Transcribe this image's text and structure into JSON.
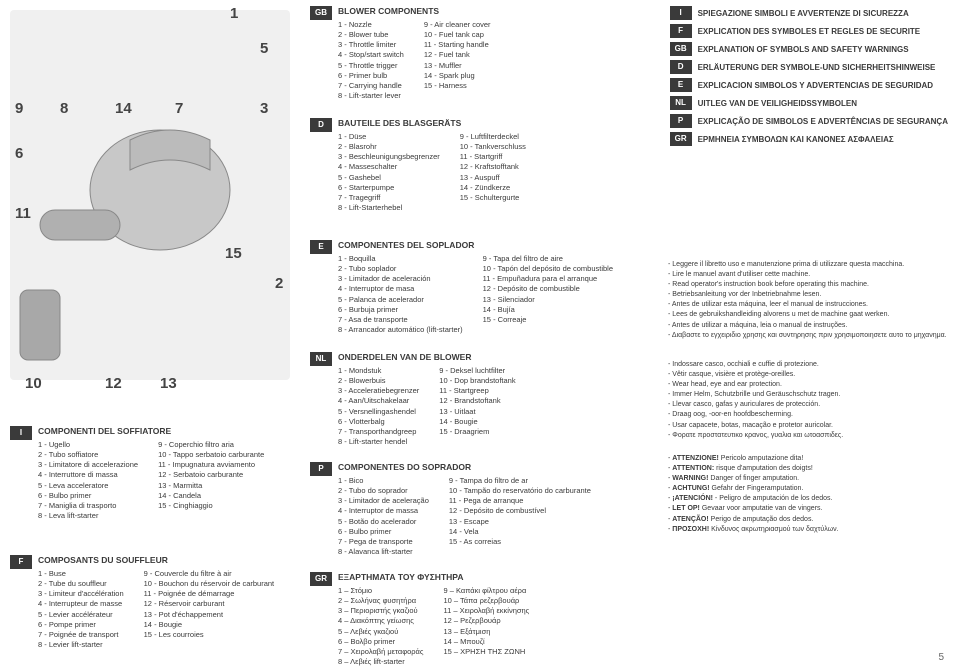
{
  "callouts": {
    "n1": "1",
    "n2": "2",
    "n3": "3",
    "n5": "5",
    "n6": "6",
    "n7": "7",
    "n8": "8",
    "n9": "9",
    "n10": "10",
    "n11": "11",
    "n12": "12",
    "n13": "13",
    "n14": "14",
    "n15": "15"
  },
  "page_number": "5",
  "headers": [
    {
      "code": "I",
      "text": "SPIEGAZIONE SIMBOLI E AVVERTENZE DI SICUREZZA"
    },
    {
      "code": "F",
      "text": "EXPLICATION DES SYMBOLES ET REGLES DE SECURITE"
    },
    {
      "code": "GB",
      "text": "EXPLANATION OF SYMBOLS AND SAFETY WARNINGS"
    },
    {
      "code": "D",
      "text": "ERLÄUTERUNG DER SYMBOLE-UND SICHERHEITSHINWEISE"
    },
    {
      "code": "E",
      "text": "EXPLICACION SIMBOLOS Y ADVERTENCIAS DE SEGURIDAD"
    },
    {
      "code": "NL",
      "text": "UITLEG VAN DE VEILIGHEIDSSYMBOLEN"
    },
    {
      "code": "P",
      "text": "EXPLICAÇÃO DE SIMBOLOS E ADVERTÊNCIAS DE SEGURANÇA"
    },
    {
      "code": "GR",
      "text": "EPMHNEIA ΣΥΜΒΟΛΩΝ ΚΑΙ ΚΑΝΟΝΕΣ ΑΣΦΑΛΕΙΑΣ"
    }
  ],
  "sections": {
    "gb": {
      "code": "GB",
      "title": "BLOWER COMPONENTS",
      "left": [
        "1 - Nozzle",
        "2 - Blower tube",
        "3 - Throttle limiter",
        "4 - Stop/start switch",
        "5 - Throttle trigger",
        "6 - Primer bulb",
        "7 - Carrying handle",
        "8 - Lift-starter lever"
      ],
      "right": [
        "9 - Air cleaner cover",
        "10 - Fuel tank cap",
        "11 - Starting handle",
        "12 - Fuel tank",
        "13 - Muffler",
        "14 - Spark plug",
        "15 - Harness"
      ]
    },
    "d": {
      "code": "D",
      "title": "BAUTEILE DES BLASGERÄTS",
      "left": [
        "1 - Düse",
        "2 - Blasrohr",
        "3 - Beschleunigungsbegrenzer",
        "4 - Masseschalter",
        "5 - Gashebel",
        "6 - Starterpumpe",
        "7 - Tragegriff",
        "8 - Lift-Starterhebel"
      ],
      "right": [
        "9 - Luftfilterdeckel",
        "10 - Tankverschluss",
        "11 - Startgriff",
        "12 - Kraftstofftank",
        "13 - Auspuff",
        "14 - Zündkerze",
        "15 - Schultergurte"
      ]
    },
    "e": {
      "code": "E",
      "title": "COMPONENTES DEL SOPLADOR",
      "left": [
        "1 - Boquilla",
        "2 - Tubo soplador",
        "3 - Limitador de aceleración",
        "4 - Interruptor de masa",
        "5 - Palanca de acelerador",
        "6 - Burbuja primer",
        "7 - Asa de transporte",
        "8 - Arrancador automático (lift-starter)"
      ],
      "right": [
        "9 - Tapa del filtro de aire",
        "10 - Tapón del depósito de combustible",
        "11 - Empuñadura para el arranque",
        "12 - Depósito de combustible",
        "13 - Silenciador",
        "14 - Bujía",
        "15 - Correaje"
      ]
    },
    "nl": {
      "code": "NL",
      "title": "ONDERDELEN VAN DE BLOWER",
      "left": [
        "1 - Mondstuk",
        "2 - Blowerbuis",
        "3 - Acceleratiebegrenzer",
        "4 - Aan/Uitschakelaar",
        "5 - Versnellingashendel",
        "6 - Vlotterbalg",
        "7 - Transporthandgreep",
        "8 - Lift-starter hendel"
      ],
      "right": [
        "9 - Deksel luchtfilter",
        "10 - Dop brandstoftank",
        "11 - Startgreep",
        "12 - Brandstoftank",
        "13 - Uitlaat",
        "14 - Bougie",
        "15 - Draagriem"
      ]
    },
    "p": {
      "code": "P",
      "title": "COMPONENTES DO SOPRADOR",
      "left": [
        "1 - Bico",
        "2 - Tubo do soprador",
        "3 - Limitador de aceleração",
        "4 - Interruptor de massa",
        "5 - Botão do acelerador",
        "6 - Bulbo primer",
        "7 - Pega de transporte",
        "8 - Alavanca lift-starter"
      ],
      "right": [
        "9 - Tampa do filtro de ar",
        "10 - Tampão do reservatório do carburante",
        "11 - Pega de arranque",
        "12 - Depósito de combustível",
        "13 - Escape",
        "14 - Vela",
        "15 - As correias"
      ]
    },
    "gr": {
      "code": "GR",
      "title": "ΕΞΑΡΤΗΜΑΤΑ ΤΟΥ ΦΥΣΗΤΗΡΑ",
      "left": [
        "1 – Στόμιο",
        "2 – Σωλήνας φυσητήρα",
        "3 – Περιοριστής γκαζιού",
        "4 – Διακόπτης γείωσης",
        "5 – Λεβιές γκαζιού",
        "6 – Βολβο primer",
        "7 – Χειρολαβή μεταφοράς",
        "8 – Λεβιές lift-starter"
      ],
      "right": [
        "9 – Καπάκι φίλτρου αέρα",
        "10 – Τάπα ρεζερβουάρ",
        "11 – Χειρολαβή εκκίνησης",
        "12 – Ρεζερβουάρ",
        "13 – Εξάτμιση",
        "14 – Μπουζί",
        "15 – ΧΡΗΣΗ ΤΗΣ ΖΩΝΗ"
      ]
    },
    "i": {
      "code": "I",
      "title": "COMPONENTI DEL SOFFIATORE",
      "left": [
        "1 - Ugello",
        "2 - Tubo soffiatore",
        "3 - Limitatore di accelerazione",
        "4 - Interruttore di massa",
        "5 - Leva acceleratore",
        "6 - Bulbo primer",
        "7 - Maniglia di trasporto",
        "8 - Leva lift-starter"
      ],
      "right": [
        "9 - Coperchio filtro aria",
        "10 - Tappo serbatoio carburante",
        "11 - Impugnatura avviamento",
        "12 - Serbatoio carburante",
        "13 - Marmitta",
        "14 - Candela",
        "15 - Cinghiaggio"
      ]
    },
    "f": {
      "code": "F",
      "title": "COMPOSANTS DU SOUFFLEUR",
      "left": [
        "1 - Buse",
        "2 - Tube du souffleur",
        "3 - Limiteur d'accélération",
        "4 - Interrupteur de masse",
        "5 - Levier accélérateur",
        "6 - Pompe primer",
        "7 - Poignée de transport",
        "8 - Levier lift-starter"
      ],
      "right": [
        "9 - Couvercle du filtre à air",
        "10 - Bouchon du réservoir de carburant",
        "11 - Poignée de démarrage",
        "12 - Réservoir carburant",
        "13 - Pot d'échappement",
        "14 - Bougie",
        "15 - Les courroies"
      ]
    }
  },
  "notes1": [
    "Leggere il libretto uso e manutenzione prima di utilizzare questa macchina.",
    "Lire le manuel avant d'utiliser cette machine.",
    "Read operator's instruction book before operating this machine.",
    "Betriebsanleitung vor der Inbetriebnahme lesen.",
    "Antes de utilizar esta máquina, leer el manual de instrucciones.",
    "Lees de gebruikshandleiding alvorens u met de machine gaat werken.",
    "Antes de utilizar a máquina, leia o manual de instruções.",
    "Διαβαστε το εγχειριδιο χρησης και συντηρησης πριν χρησιμοποιησετε αυτο το μηχανημα."
  ],
  "notes2": [
    "Indossare casco, occhiali e cuffie di protezione.",
    "Vêtir casque, visière et protège-oreilles.",
    "Wear head, eye and ear protection.",
    "Immer Helm, Schutzbrille und Geräuschschutz tragen.",
    "Llevar casco, gafas y auriculares de protección.",
    "Draag oog, -oor-en hoofdbescherming.",
    "Usar capacete, botas, macação e protetor auricolar.",
    "Φορατε προστατευτικο κρανος, γυαλια και ωτοασπιδες."
  ],
  "warnings": [
    {
      "label": "ATTENZIONE!",
      "text": " Pericolo amputazione dita!"
    },
    {
      "label": "ATTENTION:",
      "text": " risque d'amputation des doigts!"
    },
    {
      "label": "WARNING!",
      "text": " Danger of finger amputation."
    },
    {
      "label": "ACHTUNG!",
      "text": " Gefahr der Fingeramputation."
    },
    {
      "label": "¡ATENCIÓN!",
      "text": " - Peligro de amputación de los dedos."
    },
    {
      "label": "LET OP!",
      "text": " Gevaar voor amputatie van de vingers."
    },
    {
      "label": "ATENÇÃO!",
      "text": " Perigo de amputação dos dedos."
    },
    {
      "label": "ΠΡΟΣΟΧΗ!",
      "text": " Κίνδυνος ακρωτηριασμού των δαχτύλων."
    }
  ]
}
